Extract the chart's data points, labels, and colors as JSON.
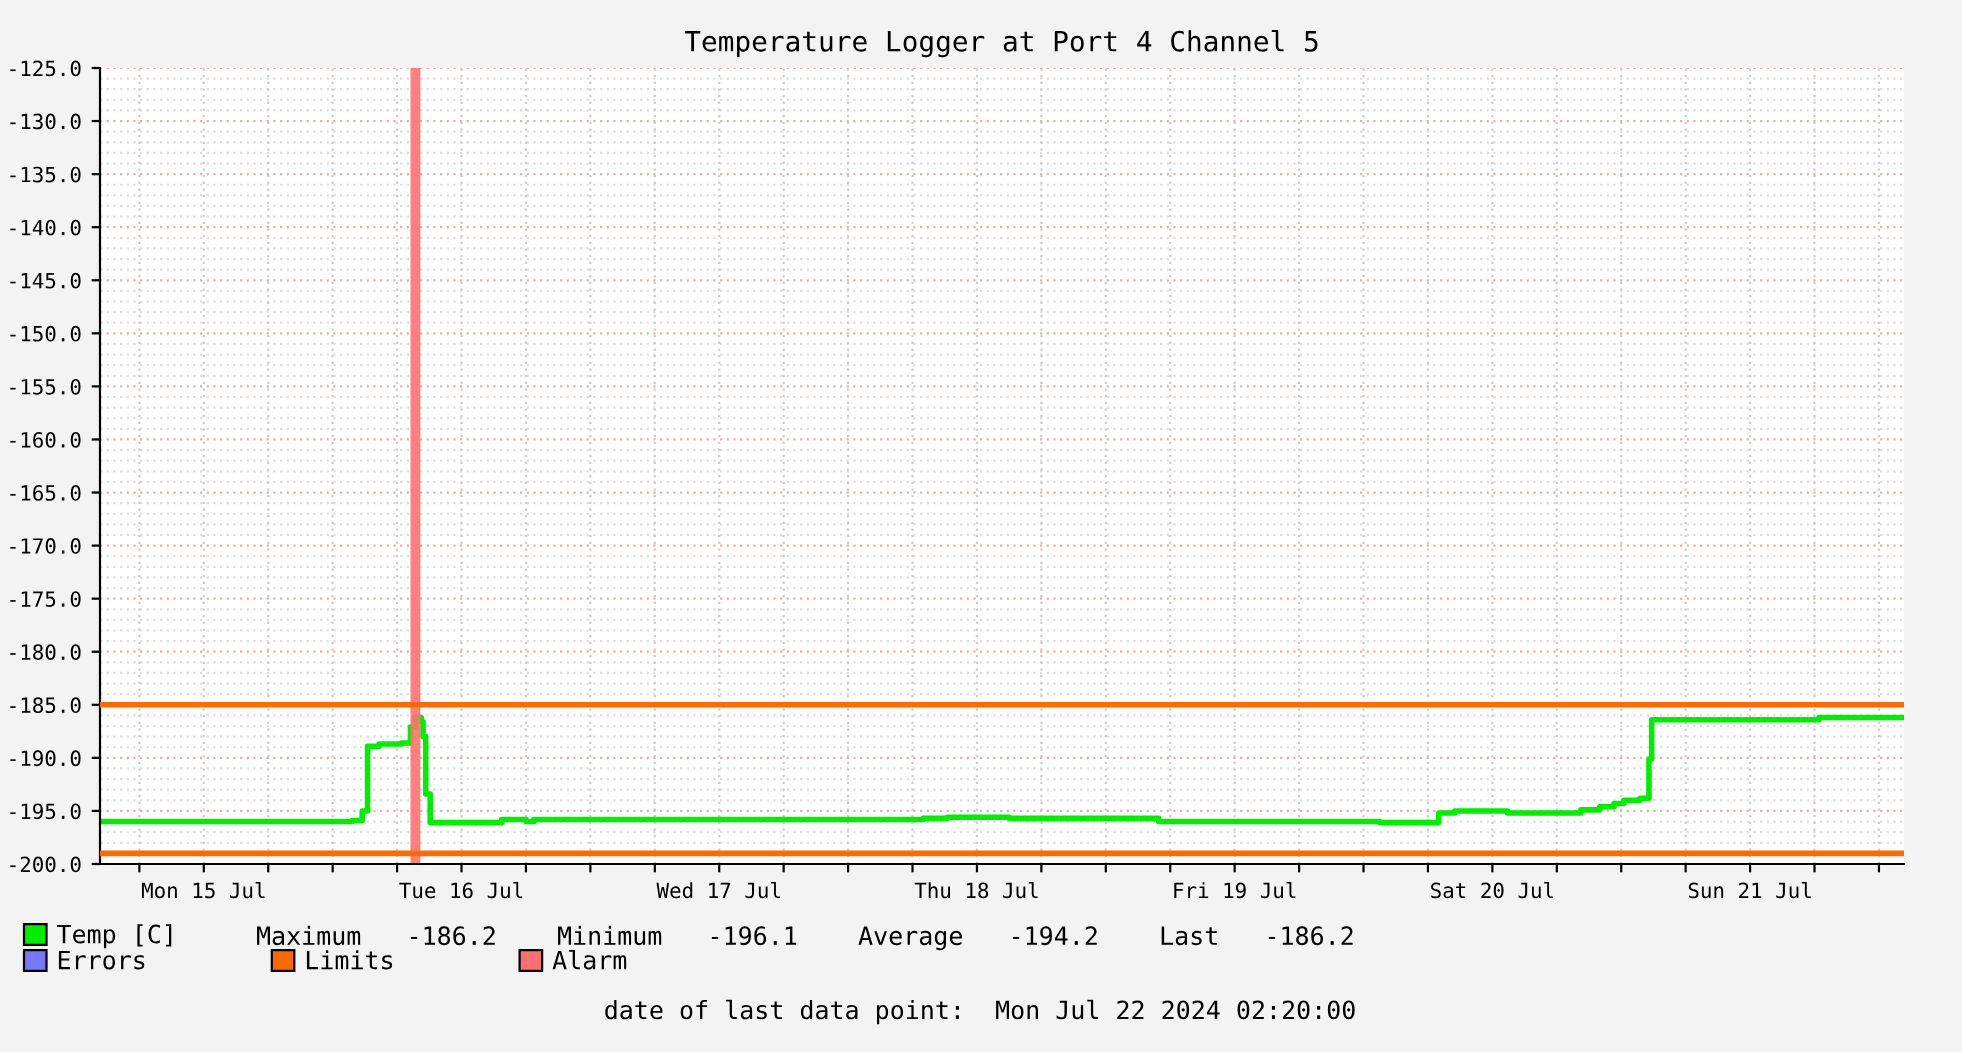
{
  "chart_data": {
    "type": "step",
    "title": "Temperature Logger at Port 4 Channel 5",
    "xlim": [
      "2024-07-15T02:20",
      "2024-07-22T02:20"
    ],
    "xticks": [
      {
        "value": "2024-07-15T06:00",
        "label": null
      },
      {
        "value": "2024-07-15T12:00",
        "label": "Mon 15 Jul"
      },
      {
        "value": "2024-07-15T18:00",
        "label": null
      },
      {
        "value": "2024-07-16T00:00",
        "label": null
      },
      {
        "value": "2024-07-16T06:00",
        "label": null
      },
      {
        "value": "2024-07-16T12:00",
        "label": "Tue 16 Jul"
      },
      {
        "value": "2024-07-16T18:00",
        "label": null
      },
      {
        "value": "2024-07-17T00:00",
        "label": null
      },
      {
        "value": "2024-07-17T06:00",
        "label": null
      },
      {
        "value": "2024-07-17T12:00",
        "label": "Wed 17 Jul"
      },
      {
        "value": "2024-07-17T18:00",
        "label": null
      },
      {
        "value": "2024-07-18T00:00",
        "label": null
      },
      {
        "value": "2024-07-18T06:00",
        "label": null
      },
      {
        "value": "2024-07-18T12:00",
        "label": "Thu 18 Jul"
      },
      {
        "value": "2024-07-18T18:00",
        "label": null
      },
      {
        "value": "2024-07-19T00:00",
        "label": null
      },
      {
        "value": "2024-07-19T06:00",
        "label": null
      },
      {
        "value": "2024-07-19T12:00",
        "label": "Fri 19 Jul"
      },
      {
        "value": "2024-07-19T18:00",
        "label": null
      },
      {
        "value": "2024-07-20T00:00",
        "label": null
      },
      {
        "value": "2024-07-20T06:00",
        "label": null
      },
      {
        "value": "2024-07-20T12:00",
        "label": "Sat 20 Jul"
      },
      {
        "value": "2024-07-20T18:00",
        "label": null
      },
      {
        "value": "2024-07-21T00:00",
        "label": null
      },
      {
        "value": "2024-07-21T06:00",
        "label": null
      },
      {
        "value": "2024-07-21T12:00",
        "label": "Sun 21 Jul"
      },
      {
        "value": "2024-07-21T18:00",
        "label": null
      },
      {
        "value": "2024-07-22T00:00",
        "label": null
      }
    ],
    "ylim": [
      -200,
      -125
    ],
    "yticks": [
      {
        "value": -200,
        "label": "-200.0"
      },
      {
        "value": -195,
        "label": "-195.0"
      },
      {
        "value": -190,
        "label": "-190.0"
      },
      {
        "value": -185,
        "label": "-185.0"
      },
      {
        "value": -180,
        "label": "-180.0"
      },
      {
        "value": -175,
        "label": "-175.0"
      },
      {
        "value": -170,
        "label": "-170.0"
      },
      {
        "value": -165,
        "label": "-165.0"
      },
      {
        "value": -160,
        "label": "-160.0"
      },
      {
        "value": -155,
        "label": "-155.0"
      },
      {
        "value": -150,
        "label": "-150.0"
      },
      {
        "value": -145,
        "label": "-145.0"
      },
      {
        "value": -140,
        "label": "-140.0"
      },
      {
        "value": -135,
        "label": "-135.0"
      },
      {
        "value": -130,
        "label": "-130.0"
      },
      {
        "value": -125,
        "label": "-125.0"
      }
    ],
    "grid": true,
    "legend": "bottom left",
    "series": [
      {
        "name": "Temp [C]",
        "color": "#00ee00",
        "x": [
          "2024-07-15T02:20",
          "2024-07-16T01:50",
          "2024-07-16T02:45",
          "2024-07-16T03:15",
          "2024-07-16T04:20",
          "2024-07-16T06:25",
          "2024-07-16T07:15",
          "2024-07-16T07:40",
          "2024-07-16T08:15",
          "2024-07-16T08:25",
          "2024-07-16T08:40",
          "2024-07-16T09:05",
          "2024-07-16T15:45",
          "2024-07-16T18:00",
          "2024-07-16T18:45",
          "2024-07-18T07:00",
          "2024-07-18T09:15",
          "2024-07-18T15:00",
          "2024-07-19T04:55",
          "2024-07-20T01:30",
          "2024-07-20T07:00",
          "2024-07-20T08:30",
          "2024-07-20T13:25",
          "2024-07-20T20:15",
          "2024-07-20T22:00",
          "2024-07-20T23:20",
          "2024-07-21T00:15",
          "2024-07-21T01:45",
          "2024-07-21T02:35",
          "2024-07-21T02:50",
          "2024-07-21T18:25",
          "2024-07-22T02:10"
        ],
        "values": [
          -196.0,
          -195.9,
          -195.0,
          -188.9,
          -188.7,
          -188.6,
          -187.1,
          -186.2,
          -186.6,
          -188.0,
          -193.4,
          -196.1,
          -195.8,
          -196.0,
          -195.8,
          -195.7,
          -195.6,
          -195.7,
          -196.0,
          -196.1,
          -195.2,
          -195.0,
          -195.2,
          -194.9,
          -194.6,
          -194.3,
          -194.0,
          -193.8,
          -190.1,
          -186.4,
          -186.2,
          -186.2
        ]
      },
      {
        "name": "Errors",
        "color": "#7777ff"
      }
    ],
    "ref_lines": [
      {
        "axis": "y",
        "value": -185,
        "label": "Limits",
        "color": "#ff6a00"
      },
      {
        "axis": "y",
        "value": -199,
        "color": "#ff6a00"
      }
    ],
    "bands": [
      {
        "axis": "x",
        "from": "2024-07-16T07:15",
        "to": "2024-07-16T08:10",
        "label": "Alarm",
        "color": "#ff7070"
      }
    ],
    "annotations": [
      "Maximum   -186.2    Minimum   -196.1    Average   -194.2    Last   -186.2",
      "date of last data point:  Mon Jul 22 2024 02:20:00"
    ]
  }
}
